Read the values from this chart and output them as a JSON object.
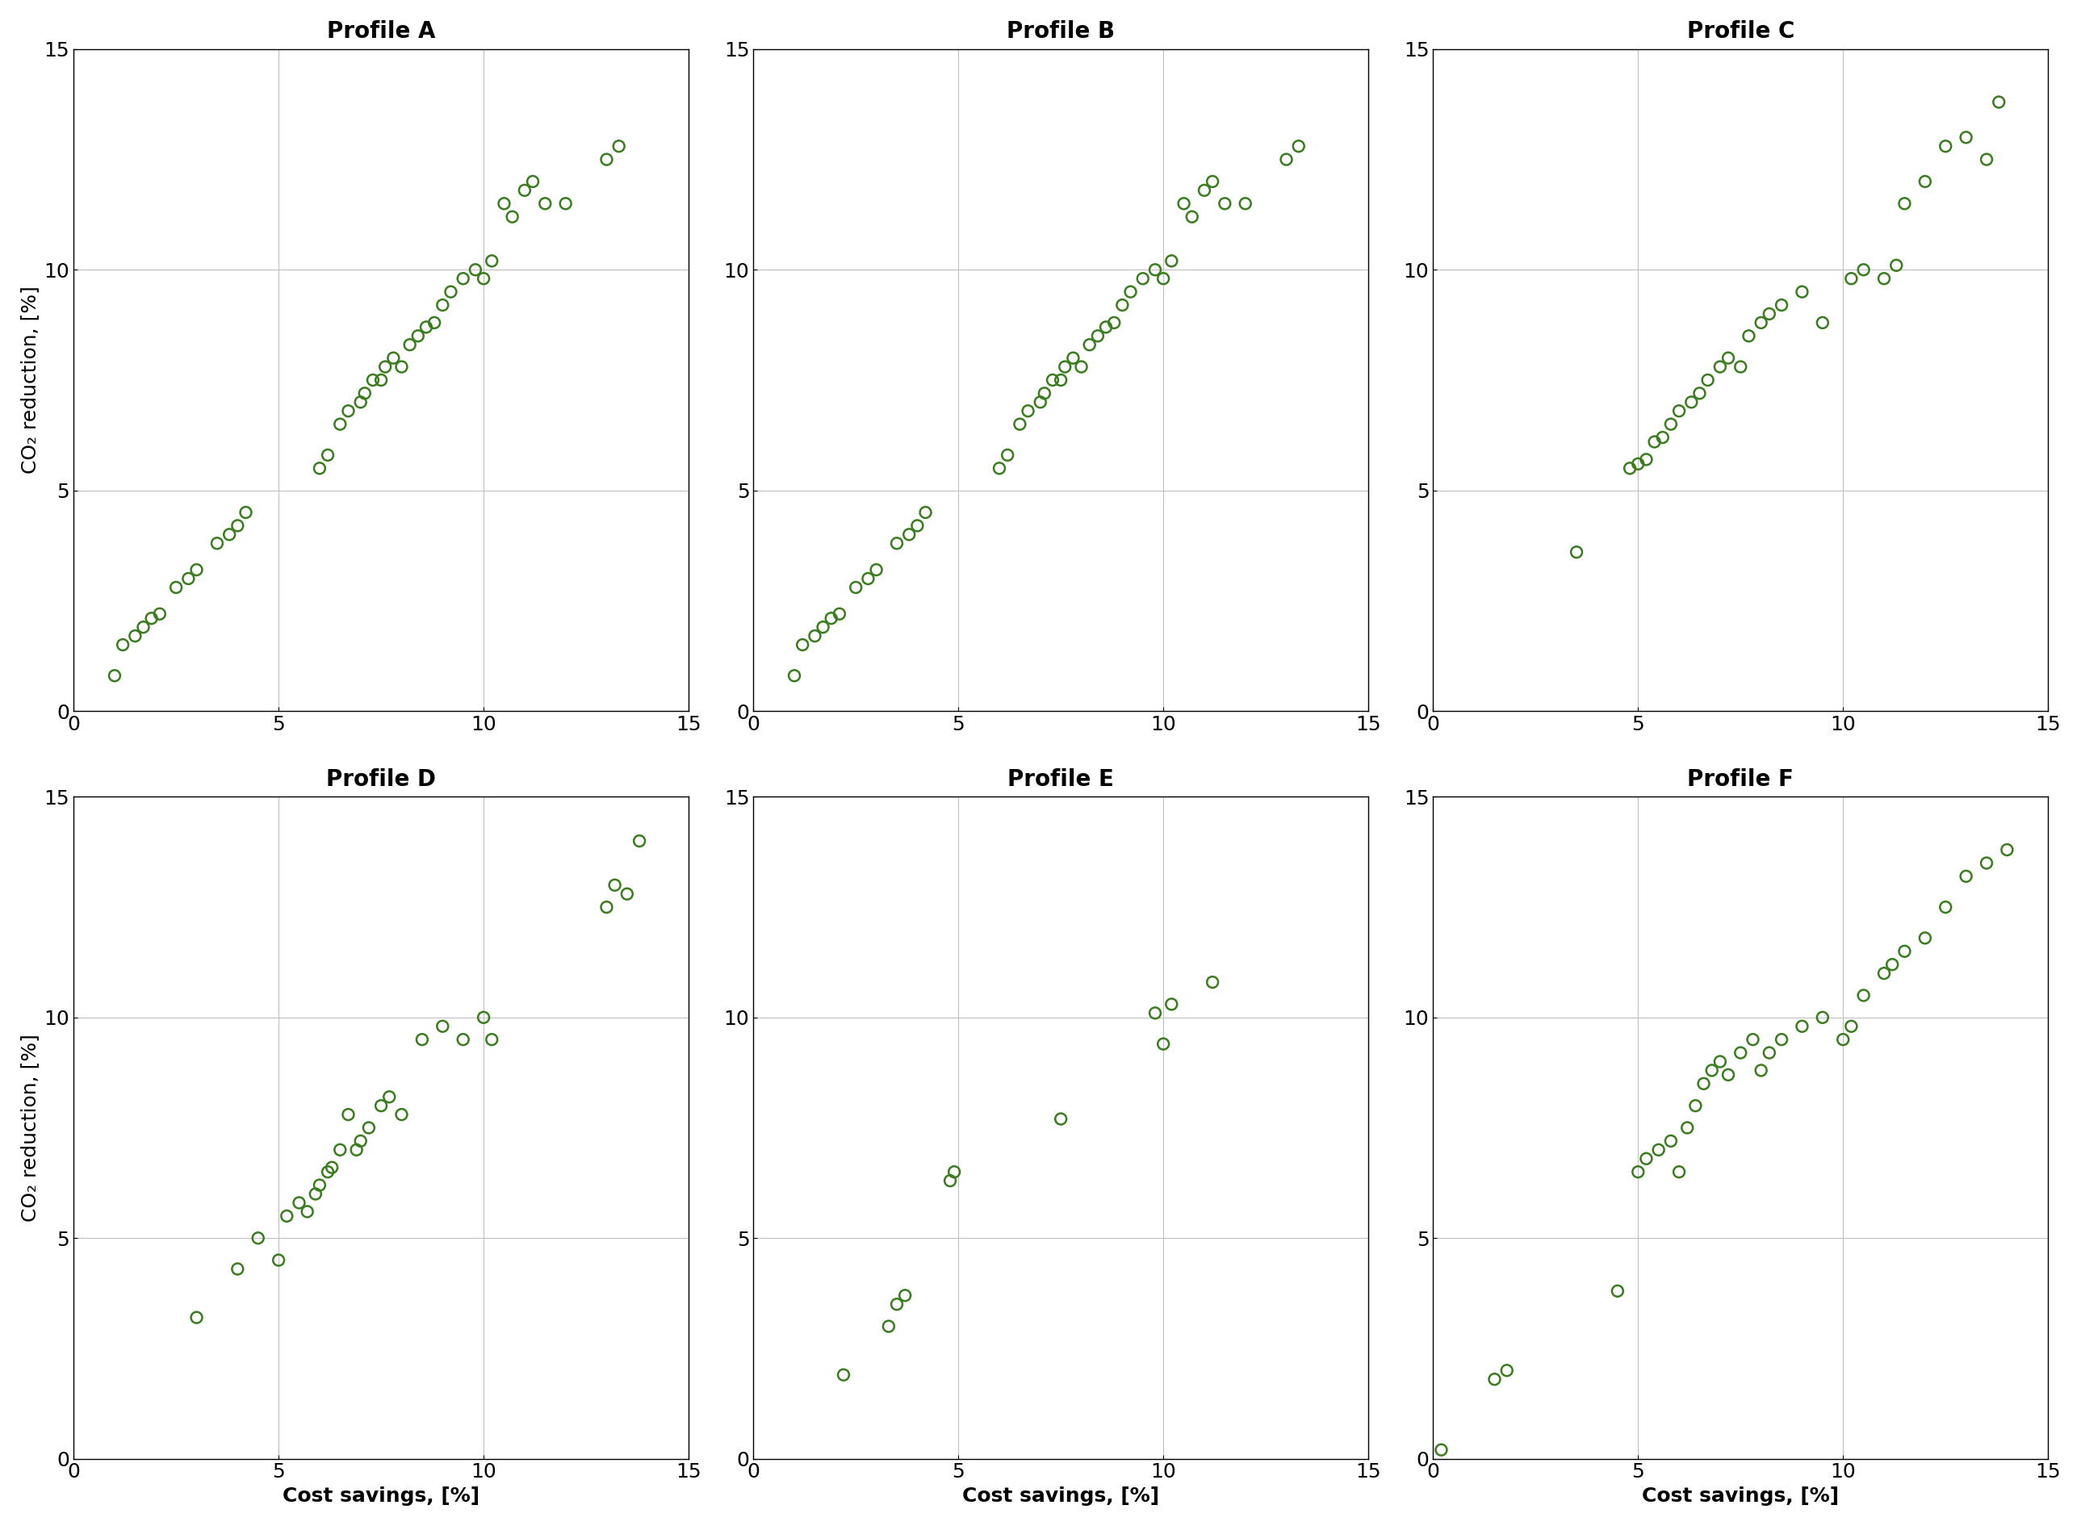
{
  "profiles": [
    "Profile A",
    "Profile B",
    "Profile C",
    "Profile D",
    "Profile E",
    "Profile F"
  ],
  "data": {
    "Profile A": {
      "x": [
        1.0,
        1.2,
        1.5,
        1.7,
        1.9,
        2.1,
        2.5,
        2.8,
        3.0,
        3.5,
        3.8,
        4.0,
        4.2,
        6.0,
        6.2,
        6.5,
        6.7,
        7.0,
        7.1,
        7.3,
        7.5,
        7.6,
        7.8,
        8.0,
        8.2,
        8.4,
        8.6,
        8.8,
        9.0,
        9.2,
        9.5,
        9.8,
        10.0,
        10.2,
        10.5,
        10.7,
        11.0,
        11.2,
        11.5,
        12.0,
        13.0,
        13.3
      ],
      "y": [
        0.8,
        1.5,
        1.7,
        1.9,
        2.1,
        2.2,
        2.8,
        3.0,
        3.2,
        3.8,
        4.0,
        4.2,
        4.5,
        5.5,
        5.8,
        6.5,
        6.8,
        7.0,
        7.2,
        7.5,
        7.5,
        7.8,
        8.0,
        7.8,
        8.3,
        8.5,
        8.7,
        8.8,
        9.2,
        9.5,
        9.8,
        10.0,
        9.8,
        10.2,
        11.5,
        11.2,
        11.8,
        12.0,
        11.5,
        11.5,
        12.5,
        12.8
      ]
    },
    "Profile B": {
      "x": [
        1.0,
        1.2,
        1.5,
        1.7,
        1.9,
        2.1,
        2.5,
        2.8,
        3.0,
        3.5,
        3.8,
        4.0,
        4.2,
        6.0,
        6.2,
        6.5,
        6.7,
        7.0,
        7.1,
        7.3,
        7.5,
        7.6,
        7.8,
        8.0,
        8.2,
        8.4,
        8.6,
        8.8,
        9.0,
        9.2,
        9.5,
        9.8,
        10.0,
        10.2,
        10.5,
        10.7,
        11.0,
        11.2,
        11.5,
        12.0,
        13.0,
        13.3
      ],
      "y": [
        0.8,
        1.5,
        1.7,
        1.9,
        2.1,
        2.2,
        2.8,
        3.0,
        3.2,
        3.8,
        4.0,
        4.2,
        4.5,
        5.5,
        5.8,
        6.5,
        6.8,
        7.0,
        7.2,
        7.5,
        7.5,
        7.8,
        8.0,
        7.8,
        8.3,
        8.5,
        8.7,
        8.8,
        9.2,
        9.5,
        9.8,
        10.0,
        9.8,
        10.2,
        11.5,
        11.2,
        11.8,
        12.0,
        11.5,
        11.5,
        12.5,
        12.8
      ]
    },
    "Profile C": {
      "x": [
        3.5,
        4.8,
        5.0,
        5.2,
        5.4,
        5.6,
        5.8,
        6.0,
        6.3,
        6.5,
        6.7,
        7.0,
        7.2,
        7.5,
        7.7,
        8.0,
        8.2,
        8.5,
        9.0,
        9.5,
        10.2,
        10.5,
        11.0,
        11.3,
        11.5,
        12.0,
        12.5,
        13.0,
        13.5,
        13.8
      ],
      "y": [
        3.6,
        5.5,
        5.6,
        5.7,
        6.1,
        6.2,
        6.5,
        6.8,
        7.0,
        7.2,
        7.5,
        7.8,
        8.0,
        7.8,
        8.5,
        8.8,
        9.0,
        9.2,
        9.5,
        8.8,
        9.8,
        10.0,
        9.8,
        10.1,
        11.5,
        12.0,
        12.8,
        13.0,
        12.5,
        13.8
      ]
    },
    "Profile D": {
      "x": [
        3.0,
        4.0,
        4.5,
        5.0,
        5.2,
        5.5,
        5.7,
        5.9,
        6.0,
        6.2,
        6.3,
        6.5,
        6.7,
        6.9,
        7.0,
        7.2,
        7.5,
        7.7,
        8.0,
        8.5,
        9.0,
        9.5,
        10.0,
        10.2,
        13.0,
        13.2,
        13.5,
        13.8
      ],
      "y": [
        3.2,
        4.3,
        5.0,
        4.5,
        5.5,
        5.8,
        5.6,
        6.0,
        6.2,
        6.5,
        6.6,
        7.0,
        7.8,
        7.0,
        7.2,
        7.5,
        8.0,
        8.2,
        7.8,
        9.5,
        9.8,
        9.5,
        10.0,
        9.5,
        12.5,
        13.0,
        12.8,
        14.0
      ]
    },
    "Profile E": {
      "x": [
        2.2,
        3.3,
        3.5,
        3.7,
        4.8,
        4.9,
        7.5,
        9.8,
        10.0,
        10.2,
        11.2
      ],
      "y": [
        1.9,
        3.0,
        3.5,
        3.7,
        6.3,
        6.5,
        7.7,
        10.1,
        9.4,
        10.3,
        10.8
      ]
    },
    "Profile F": {
      "x": [
        0.2,
        1.5,
        1.8,
        4.5,
        5.0,
        5.2,
        5.5,
        5.8,
        6.0,
        6.2,
        6.4,
        6.6,
        6.8,
        7.0,
        7.2,
        7.5,
        7.8,
        8.0,
        8.2,
        8.5,
        9.0,
        9.5,
        10.0,
        10.2,
        10.5,
        11.0,
        11.2,
        11.5,
        12.0,
        12.5,
        13.0,
        13.5,
        14.0
      ],
      "y": [
        0.2,
        1.8,
        2.0,
        3.8,
        6.5,
        6.8,
        7.0,
        7.2,
        6.5,
        7.5,
        8.0,
        8.5,
        8.8,
        9.0,
        8.7,
        9.2,
        9.5,
        8.8,
        9.2,
        9.5,
        9.8,
        10.0,
        9.5,
        9.8,
        10.5,
        11.0,
        11.2,
        11.5,
        11.8,
        12.5,
        13.2,
        13.5,
        13.8
      ]
    }
  },
  "marker_color": "#3a7d1e",
  "marker_face_color": "none",
  "marker_size": 100,
  "marker_linewidth": 1.8,
  "grid_color": "#c0c0c0",
  "background_color": "#ffffff",
  "xlabel": "Cost savings, [%]",
  "ylabel": "CO₂ reduction, [%]",
  "xlim": [
    0,
    15
  ],
  "ylim": [
    0,
    15
  ],
  "xticks": [
    0,
    5,
    10,
    15
  ],
  "yticks": [
    0,
    5,
    10,
    15
  ],
  "title_fontsize": 20,
  "label_fontsize": 18,
  "tick_fontsize": 18
}
